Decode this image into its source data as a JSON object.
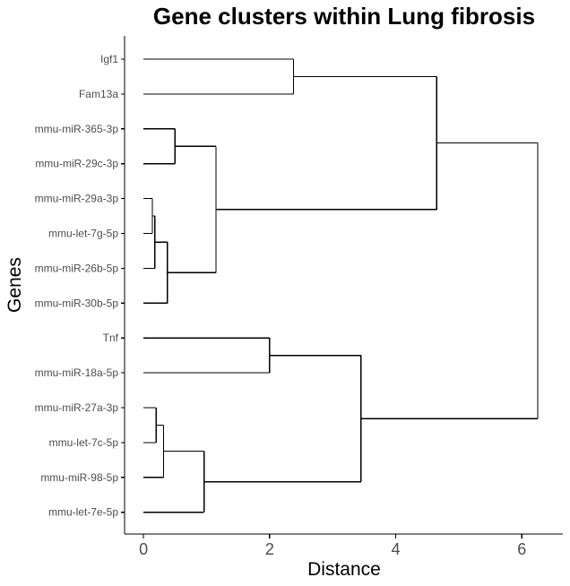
{
  "chart_data": {
    "type": "dendrogram",
    "title": "Gene clusters within Lung fibrosis",
    "xlabel": "Distance",
    "ylabel": "Genes",
    "xlim": [
      -0.3,
      6.65
    ],
    "x_ticks": [
      0,
      2,
      4,
      6
    ],
    "x_tick_labels": [
      "0",
      "2",
      "4",
      "6"
    ],
    "grid": false,
    "legend": "none",
    "leaves": [
      "Igf1",
      "Fam13a",
      "mmu-miR-365-3p",
      "mmu-miR-29c-3p",
      "mmu-miR-29a-3p",
      "mmu-let-7g-5p",
      "mmu-miR-26b-5p",
      "mmu-miR-30b-5p",
      "Tnf",
      "mmu-miR-18a-5p",
      "mmu-miR-27a-3p",
      "mmu-let-7c-5p",
      "mmu-miR-98-5p",
      "mmu-let-7e-5p"
    ],
    "merges": [
      {
        "left": "L0",
        "right": "L1",
        "height": 2.38
      },
      {
        "left": "L2",
        "right": "L3",
        "height": 0.5
      },
      {
        "left": "L4",
        "right": "L5",
        "height": 0.14
      },
      {
        "left": "M2",
        "right": "L6",
        "height": 0.18
      },
      {
        "left": "M3",
        "right": "L7",
        "height": 0.38
      },
      {
        "left": "M1",
        "right": "M4",
        "height": 1.15
      },
      {
        "left": "M0",
        "right": "M5",
        "height": 4.65
      },
      {
        "left": "L8",
        "right": "L9",
        "height": 2.0
      },
      {
        "left": "L10",
        "right": "L11",
        "height": 0.2
      },
      {
        "left": "M8",
        "right": "L12",
        "height": 0.32
      },
      {
        "left": "M9",
        "right": "L13",
        "height": 0.96
      },
      {
        "left": "M7",
        "right": "M10",
        "height": 3.45
      },
      {
        "left": "M6",
        "right": "M11",
        "height": 6.25
      }
    ]
  }
}
